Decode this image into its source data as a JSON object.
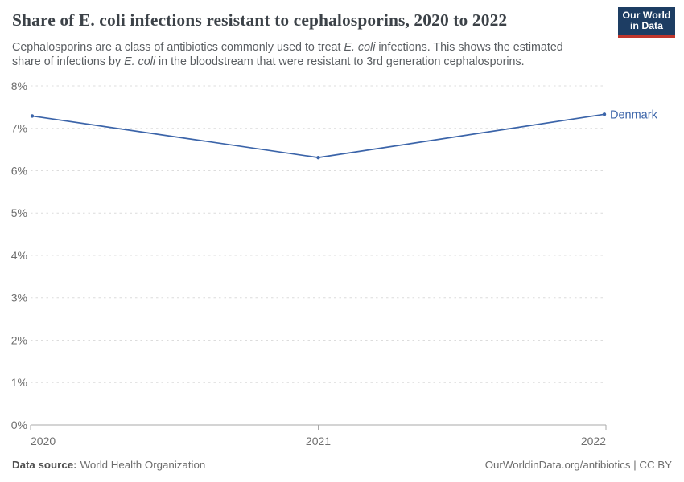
{
  "header": {
    "title": "Share of E. coli infections resistant to cephalosporins, 2020 to 2022",
    "subtitle_segments": [
      {
        "text": "Cephalosporins are a class of antibiotics commonly used to treat "
      },
      {
        "text": "E. coli",
        "italic": true
      },
      {
        "text": " infections. This shows the estimated"
      },
      {
        "br": true
      },
      {
        "text": "share of infections by "
      },
      {
        "text": "E. coli",
        "italic": true
      },
      {
        "text": " in the bloodstream that were resistant to 3rd generation cephalosporins."
      }
    ],
    "logo": {
      "line1": "Our World",
      "line2": "in Data"
    }
  },
  "chart_data": {
    "type": "line",
    "title": "Share of E. coli infections resistant to cephalosporins, 2020 to 2022",
    "x": [
      2020,
      2021,
      2022
    ],
    "x_tick_labels": [
      "2020",
      "2021",
      "2022"
    ],
    "series": [
      {
        "name": "Denmark",
        "values": [
          7.29,
          6.31,
          7.33
        ]
      }
    ],
    "xlabel": "",
    "ylabel": "",
    "ylim": [
      0,
      8
    ],
    "yticks": [
      0,
      1,
      2,
      3,
      4,
      5,
      6,
      7,
      8
    ],
    "ytick_suffix": "%",
    "grid": "horizontal-dashed",
    "legend_position": "end-of-line-label",
    "markers": true
  },
  "footer": {
    "source_label": "Data source:",
    "source_value": "World Health Organization",
    "credit": "OurWorldinData.org/antibiotics | CC BY"
  },
  "colors": {
    "accent_line": "#3b64a9",
    "series_label": "#3b64a9",
    "grid": "#dcdcdc",
    "axis": "#a8a8a8",
    "axis_label": "#6e6e6e",
    "title": "#3c4248",
    "subtitle": "#5a5e62",
    "footer_text": "#6d6d6d",
    "source_label": "#4f4f4f",
    "logo_bg": "#1d3d63",
    "logo_bar": "#c0362c",
    "background": "#ffffff"
  }
}
